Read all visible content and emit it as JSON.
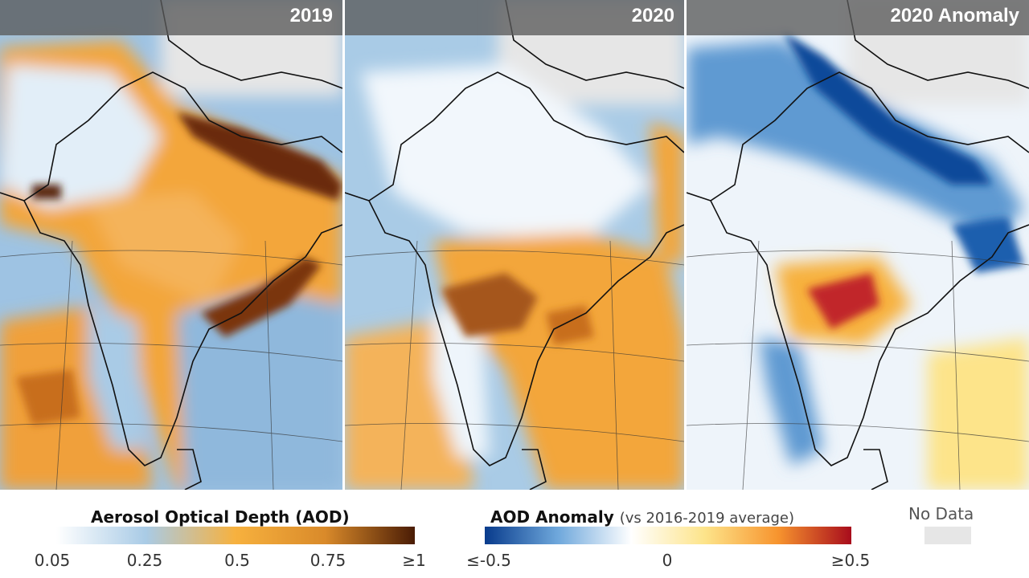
{
  "panels": [
    {
      "title": "2019"
    },
    {
      "title": "2020"
    },
    {
      "title": "2020 Anomaly"
    }
  ],
  "aod_legend": {
    "title": "Aerosol Optical Depth (AOD)",
    "ticks": [
      "0.05",
      "0.25",
      "0.5",
      "0.75",
      "≥1"
    ],
    "colors": [
      "#ffffff",
      "#a9cbe6",
      "#f7b13e",
      "#d98a2a",
      "#4a1c05"
    ]
  },
  "anomaly_legend": {
    "title": "AOD Anomaly",
    "subtitle": "(vs 2016-2019 average)",
    "ticks": [
      "≤-0.5",
      "0",
      "≥0.5"
    ],
    "colors": [
      "#083b8c",
      "#6fa8dc",
      "#ffffff",
      "#fde48a",
      "#f7942e",
      "#a80c1c"
    ]
  },
  "no_data": {
    "label": "No Data",
    "color": "#e6e6e6"
  },
  "map_colors": {
    "low": "#cfe2f1",
    "blue": "#8fb8dc",
    "orange": "#f3a63a",
    "dark_orange": "#c86e1e",
    "brown": "#5a2608",
    "anomaly_neg_dark": "#0b4a9a",
    "anomaly_neg": "#5f9ad2",
    "anomaly_pos": "#f4a63c",
    "anomaly_pos_dark": "#c1262a",
    "border": "#111111"
  }
}
